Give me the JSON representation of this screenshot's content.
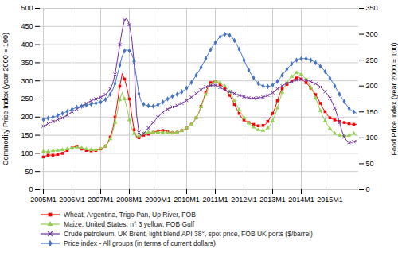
{
  "chart_data": {
    "type": "line",
    "categories": [
      "2005M1",
      null,
      null,
      null,
      null,
      null,
      null,
      null,
      null,
      null,
      null,
      null,
      "2006M1",
      null,
      null,
      null,
      null,
      null,
      null,
      null,
      null,
      null,
      null,
      null,
      "2007M1",
      null,
      null,
      null,
      null,
      null,
      null,
      null,
      null,
      null,
      null,
      null,
      "2008M1",
      null,
      null,
      null,
      null,
      null,
      null,
      null,
      null,
      null,
      null,
      null,
      "2009M1",
      null,
      null,
      null,
      null,
      null,
      null,
      null,
      null,
      null,
      null,
      null,
      "2010M1",
      null,
      null,
      null,
      null,
      null,
      null,
      null,
      null,
      null,
      null,
      null,
      "2011M1",
      null,
      null,
      null,
      null,
      null,
      null,
      null,
      null,
      null,
      null,
      null,
      "2012M1",
      null,
      null,
      null,
      null,
      null,
      null,
      null,
      null,
      null,
      null,
      null,
      "2013M1",
      null,
      null,
      null,
      null,
      null,
      null,
      null,
      null,
      null,
      null,
      null,
      "2014M1",
      null,
      null,
      null,
      null,
      null,
      null,
      null,
      null,
      null,
      null,
      null,
      "2015M1",
      null,
      null,
      null,
      null,
      null,
      null,
      null,
      null,
      null,
      null,
      null
    ],
    "ylabel": "Commodity Price Index (year 2000 = 100)",
    "y2label": "Food Price Index (year 2000 = 100)",
    "ylim": [
      0,
      500
    ],
    "yticks": [
      0,
      50,
      100,
      150,
      200,
      250,
      300,
      350,
      400,
      450,
      500
    ],
    "y2lim": [
      0,
      350
    ],
    "y2ticks": [
      0,
      50,
      100,
      150,
      200,
      250,
      300,
      350
    ],
    "grid": true,
    "legend": "bottom",
    "series": [
      {
        "name": "Wheat, Argentina, Trigo Pan, Up River, FOB",
        "color": "#FF0000",
        "marker": "square",
        "axis": "y",
        "values": [
          90,
          93,
          95,
          95,
          95,
          95,
          97,
          98,
          100,
          105,
          108,
          112,
          115,
          118,
          120,
          115,
          112,
          110,
          108,
          107,
          107,
          107,
          108,
          110,
          112,
          115,
          120,
          130,
          145,
          165,
          200,
          240,
          285,
          320,
          305,
          280,
          250,
          205,
          165,
          145,
          143,
          148,
          150,
          152,
          153,
          155,
          158,
          160,
          162,
          163,
          163,
          162,
          160,
          158,
          157,
          157,
          158,
          160,
          163,
          166,
          170,
          175,
          180,
          188,
          198,
          210,
          230,
          248,
          268,
          285,
          295,
          298,
          298,
          295,
          290,
          285,
          278,
          270,
          260,
          248,
          235,
          222,
          210,
          198,
          192,
          188,
          185,
          182,
          180,
          178,
          176,
          175,
          177,
          180,
          188,
          198,
          210,
          225,
          245,
          265,
          278,
          285,
          290,
          295,
          300,
          305,
          308,
          310,
          305,
          300,
          295,
          288,
          280,
          272,
          262,
          250,
          238,
          225,
          215,
          205,
          198,
          195,
          192,
          190,
          188,
          186,
          185,
          183,
          182,
          180,
          180,
          180
        ]
      },
      {
        "name": "Maize, United States, n° 3 yellow, FOB Gulf",
        "color": "#92D050",
        "marker": "triangle",
        "axis": "y",
        "values": [
          105,
          105,
          105,
          106,
          107,
          108,
          108,
          109,
          110,
          111,
          112,
          113,
          115,
          116,
          117,
          116,
          115,
          113,
          112,
          111,
          110,
          110,
          110,
          111,
          113,
          116,
          120,
          128,
          140,
          158,
          185,
          215,
          248,
          268,
          250,
          225,
          192,
          168,
          155,
          148,
          148,
          152,
          155,
          157,
          158,
          158,
          158,
          158,
          158,
          158,
          157,
          157,
          157,
          157,
          157,
          157,
          158,
          160,
          163,
          166,
          170,
          175,
          180,
          188,
          198,
          210,
          228,
          245,
          262,
          278,
          288,
          295,
          298,
          298,
          295,
          290,
          285,
          278,
          270,
          258,
          245,
          232,
          220,
          208,
          198,
          190,
          183,
          177,
          172,
          168,
          165,
          163,
          163,
          165,
          170,
          178,
          190,
          205,
          225,
          248,
          268,
          285,
          295,
          305,
          312,
          318,
          322,
          322,
          318,
          312,
          305,
          295,
          282,
          268,
          252,
          235,
          218,
          202,
          190,
          178,
          168,
          160,
          155,
          152,
          150,
          148,
          148,
          148,
          150,
          152,
          155,
          150
        ]
      },
      {
        "name": "Crude petroleum, UK Brent, light blend API 38°, spot price, FOB UK ports ($/barrel)",
        "color": "#7030A0",
        "marker": "x",
        "axis": "y",
        "values": [
          175,
          178,
          182,
          185,
          188,
          190,
          193,
          195,
          198,
          202,
          205,
          210,
          215,
          218,
          222,
          226,
          230,
          234,
          238,
          242,
          245,
          248,
          250,
          252,
          255,
          258,
          262,
          268,
          278,
          292,
          318,
          358,
          400,
          440,
          468,
          472,
          455,
          418,
          350,
          208,
          158,
          148,
          155,
          162,
          170,
          178,
          185,
          193,
          200,
          207,
          213,
          218,
          222,
          225,
          228,
          230,
          232,
          235,
          238,
          242,
          246,
          250,
          255,
          260,
          265,
          270,
          275,
          280,
          283,
          285,
          287,
          288,
          288,
          285,
          282,
          278,
          275,
          272,
          270,
          268,
          265,
          262,
          260,
          258,
          256,
          254,
          253,
          252,
          252,
          252,
          253,
          254,
          255,
          257,
          260,
          263,
          267,
          272,
          278,
          282,
          286,
          290,
          293,
          296,
          298,
          300,
          302,
          304,
          304,
          303,
          302,
          300,
          298,
          295,
          292,
          288,
          283,
          277,
          270,
          262,
          252,
          240,
          225,
          207,
          185,
          162,
          145,
          135,
          130,
          130,
          132,
          135
        ]
      },
      {
        "name": "Price index - All groups (in terms of current dollars)",
        "color": "#4472C4",
        "marker": "diamond",
        "axis": "y2",
        "values": [
          135,
          137,
          138,
          139,
          140,
          141,
          143,
          145,
          147,
          149,
          151,
          153,
          155,
          157,
          159,
          160,
          161,
          162,
          163,
          164,
          165,
          166,
          167,
          168,
          169,
          171,
          174,
          178,
          184,
          192,
          205,
          222,
          240,
          258,
          268,
          270,
          268,
          262,
          248,
          215,
          185,
          170,
          165,
          163,
          162,
          161,
          161,
          162,
          164,
          166,
          169,
          172,
          175,
          178,
          180,
          182,
          184,
          186,
          189,
          192,
          196,
          201,
          207,
          214,
          221,
          228,
          236,
          244,
          253,
          262,
          270,
          278,
          284,
          290,
          295,
          298,
          300,
          300,
          298,
          294,
          288,
          280,
          271,
          261,
          250,
          240,
          231,
          223,
          216,
          210,
          205,
          202,
          200,
          199,
          199,
          200,
          202,
          205,
          209,
          215,
          221,
          227,
          233,
          238,
          243,
          247,
          250,
          252,
          253,
          253,
          253,
          252,
          250,
          248,
          245,
          242,
          238,
          233,
          228,
          222,
          215,
          208,
          200,
          192,
          184,
          177,
          170,
          163,
          157,
          153,
          150,
          148
        ]
      }
    ]
  }
}
